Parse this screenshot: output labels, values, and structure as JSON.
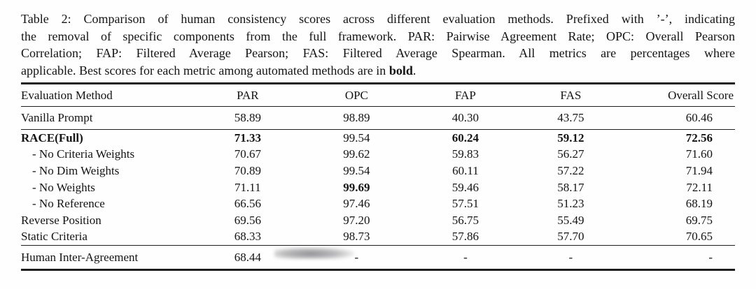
{
  "caption": {
    "lines": [
      {
        "segments": [
          {
            "text": "Table 2: Comparison of human consistency scores across different evaluation methods. Prefixed with ’-’, indicating"
          }
        ]
      },
      {
        "segments": [
          {
            "text": "the removal of specific components from the full framework. PAR: Pairwise Agreement Rate; OPC: Overall Pearson"
          }
        ]
      },
      {
        "segments": [
          {
            "text": "Correlation; FAP: Filtered Average Pearson; FAS: Filtered Average Spearman. All metrics are percentages where"
          }
        ]
      },
      {
        "segments": [
          {
            "text": "applicable. Best scores for each metric among automated methods are in "
          },
          {
            "text": "bold",
            "bold": true
          },
          {
            "text": "."
          }
        ]
      }
    ]
  },
  "table": {
    "columns": [
      "Evaluation Method",
      "PAR",
      "OPC",
      "FAP",
      "FAS",
      "Overall Score"
    ],
    "sections": [
      {
        "rows": [
          {
            "label": {
              "text": "Vanilla Prompt"
            },
            "values": [
              {
                "text": "58.89"
              },
              {
                "text": "98.89"
              },
              {
                "text": "40.30"
              },
              {
                "text": "43.75"
              },
              {
                "text": "60.46"
              }
            ]
          }
        ]
      },
      {
        "rows": [
          {
            "label": {
              "text": "RACE(Full)",
              "bold": true
            },
            "values": [
              {
                "text": "71.33",
                "bold": true
              },
              {
                "text": "99.54"
              },
              {
                "text": "60.24",
                "bold": true
              },
              {
                "text": "59.12",
                "bold": true
              },
              {
                "text": "72.56",
                "bold": true
              }
            ]
          },
          {
            "label": {
              "text": "- No Criteria Weights",
              "indent": true
            },
            "values": [
              {
                "text": "70.67"
              },
              {
                "text": "99.62"
              },
              {
                "text": "59.83"
              },
              {
                "text": "56.27"
              },
              {
                "text": "71.60"
              }
            ]
          },
          {
            "label": {
              "text": "- No Dim Weights",
              "indent": true
            },
            "values": [
              {
                "text": "70.89"
              },
              {
                "text": "99.54"
              },
              {
                "text": "60.11"
              },
              {
                "text": "57.22"
              },
              {
                "text": "71.94"
              }
            ]
          },
          {
            "label": {
              "text": "- No Weights",
              "indent": true
            },
            "values": [
              {
                "text": "71.11"
              },
              {
                "text": "99.69",
                "bold": true
              },
              {
                "text": "59.46"
              },
              {
                "text": "58.17"
              },
              {
                "text": "72.11"
              }
            ]
          },
          {
            "label": {
              "text": "- No Reference",
              "indent": true
            },
            "values": [
              {
                "text": "66.56"
              },
              {
                "text": "97.46"
              },
              {
                "text": "57.51"
              },
              {
                "text": "51.23"
              },
              {
                "text": "68.19"
              }
            ]
          },
          {
            "label": {
              "text": "Reverse Position"
            },
            "values": [
              {
                "text": "69.56"
              },
              {
                "text": "97.20"
              },
              {
                "text": "56.75"
              },
              {
                "text": "55.49"
              },
              {
                "text": "69.75"
              }
            ]
          },
          {
            "label": {
              "text": "Static Criteria"
            },
            "values": [
              {
                "text": "68.33"
              },
              {
                "text": "98.73"
              },
              {
                "text": "57.86"
              },
              {
                "text": "57.70"
              },
              {
                "text": "70.65"
              }
            ]
          }
        ]
      },
      {
        "rows": [
          {
            "label": {
              "text": "Human Inter-Agreement"
            },
            "values": [
              {
                "text": "68.44"
              },
              {
                "text": "-"
              },
              {
                "text": "-"
              },
              {
                "text": "-"
              },
              {
                "text": "-"
              }
            ]
          }
        ]
      }
    ]
  },
  "colors": {
    "text": "#141414",
    "rule": "#1d1d1d",
    "background": "#fefefe"
  }
}
